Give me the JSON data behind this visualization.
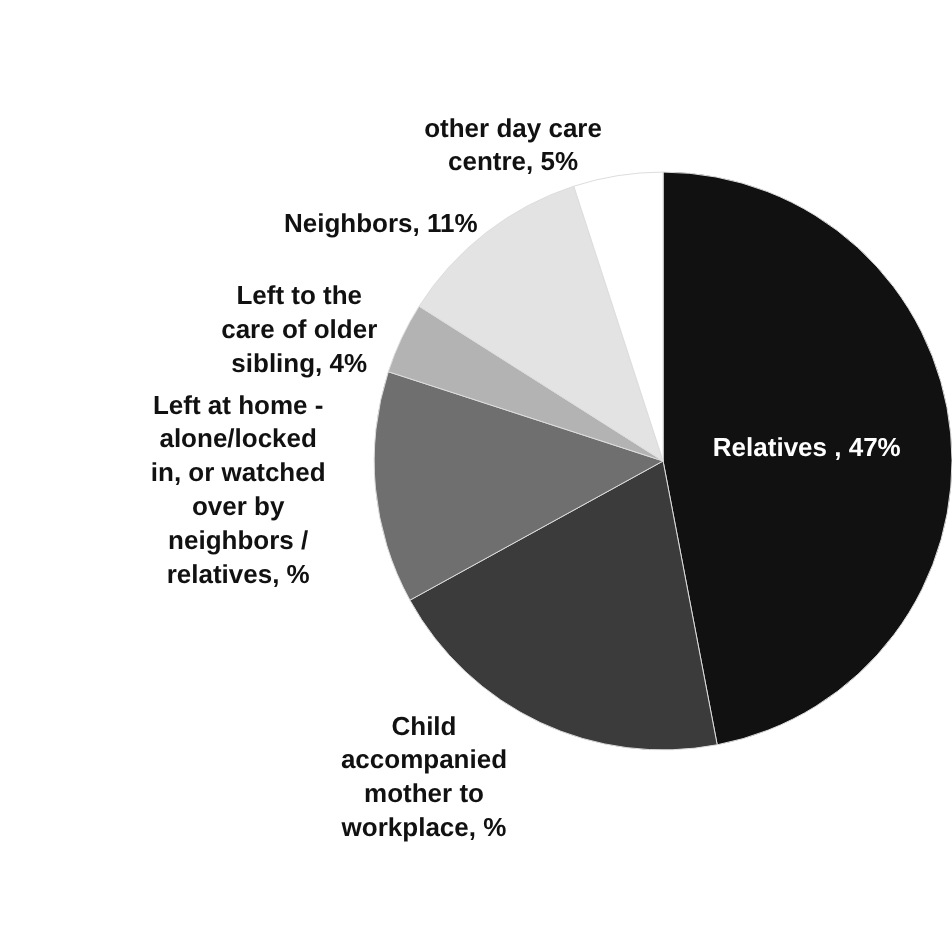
{
  "chart_data": {
    "type": "pie",
    "categories": [
      "Relatives , 47%",
      "Child accompanied mother to workplace, %",
      "Left at home - alone/locked in, or watched over by neighbors / relatives, %",
      "Left to the care of older sibling, 4%",
      "Neighbors, 11%",
      "other day care centre, 5%"
    ],
    "values": [
      47,
      20,
      13,
      4,
      11,
      5
    ],
    "colors": [
      "#111111",
      "#3b3b3b",
      "#6f6f6f",
      "#b3b3b3",
      "#e3e3e3",
      "#ffffff"
    ]
  }
}
